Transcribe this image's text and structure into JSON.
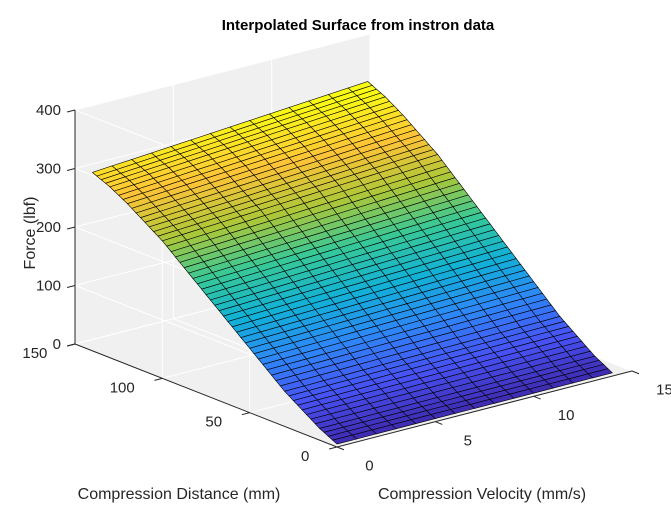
{
  "chart_data": {
    "type": "surface",
    "title": "Interpolated Surface from instron data",
    "xlabel": "Compression Velocity (mm/s)",
    "ylabel": "Compression Distance (mm)",
    "zlabel": "Force (lbf)",
    "xlim": [
      0,
      15
    ],
    "ylim": [
      0,
      150
    ],
    "zlim": [
      0,
      400
    ],
    "x_ticks": [
      0,
      5,
      10,
      15
    ],
    "y_ticks": [
      0,
      50,
      100,
      150
    ],
    "z_ticks": [
      0,
      100,
      200,
      300,
      400
    ],
    "x_tick_labels": [
      "0",
      "5",
      "10",
      "15"
    ],
    "y_tick_labels": [
      "0",
      "50",
      "100",
      "150"
    ],
    "z_tick_labels": [
      "0",
      "100",
      "200",
      "300",
      "400"
    ],
    "colormap": "parula",
    "grid": true,
    "surface": {
      "x_range": [
        0,
        14
      ],
      "y_range": [
        0,
        140
      ],
      "force_at_y": [
        [
          0,
          5
        ],
        [
          10,
          20
        ],
        [
          20,
          40
        ],
        [
          30,
          60
        ],
        [
          40,
          85
        ],
        [
          50,
          110
        ],
        [
          60,
          135
        ],
        [
          70,
          160
        ],
        [
          80,
          185
        ],
        [
          90,
          210
        ],
        [
          100,
          235
        ],
        [
          110,
          255
        ],
        [
          120,
          275
        ],
        [
          130,
          292
        ],
        [
          140,
          305
        ]
      ],
      "velocity_gain": 0.12
    }
  }
}
